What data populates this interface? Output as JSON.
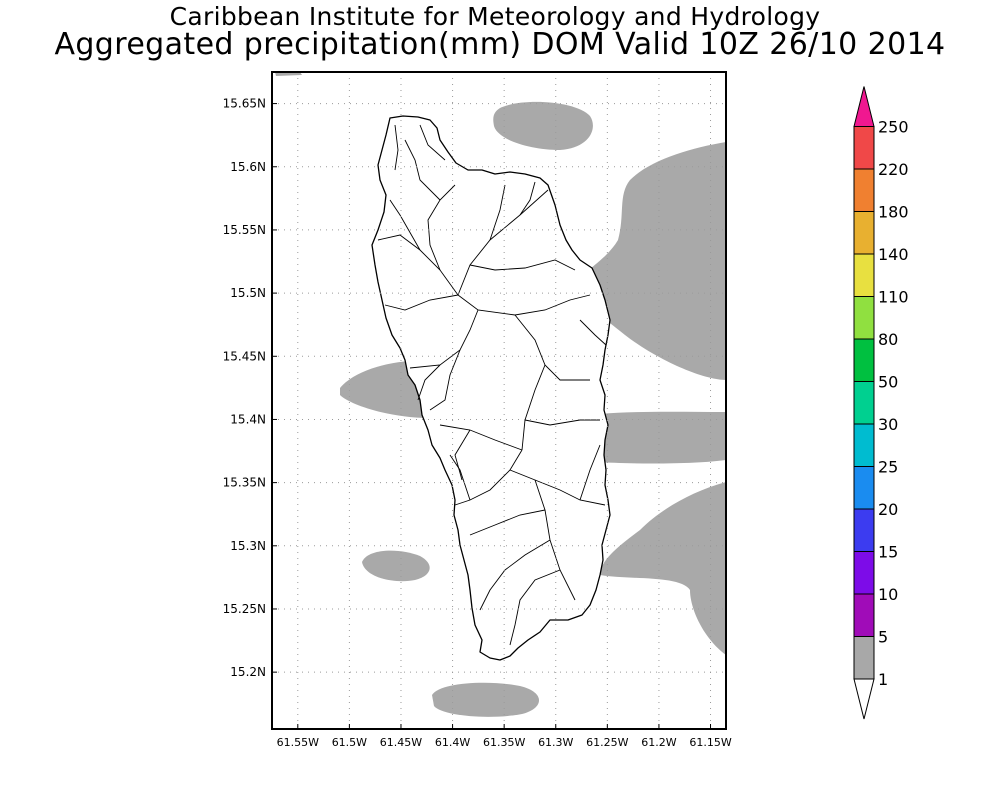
{
  "title": {
    "line1": "Caribbean Institute for Meteorology and Hydrology",
    "line2": "Aggregated precipitation(mm) DOM Valid 10Z 26/10 2014"
  },
  "map": {
    "region": "Dominica",
    "lat_range": [
      15.155,
      15.675
    ],
    "lon_range": [
      -61.575,
      -61.135
    ],
    "lat_ticks": [
      "15.2N",
      "15.25N",
      "15.3N",
      "15.35N",
      "15.4N",
      "15.45N",
      "15.5N",
      "15.55N",
      "15.6N",
      "15.65N"
    ],
    "lon_ticks": [
      "61.55W",
      "61.5W",
      "61.45W",
      "61.4W",
      "61.35W",
      "61.3W",
      "61.25W",
      "61.2W",
      "61.15W"
    ],
    "grid": "dotted",
    "precip_fill_color": "#a9a9a9",
    "land_outline_color": "#000000"
  },
  "colorbar": {
    "labels": [
      "1",
      "5",
      "10",
      "15",
      "20",
      "25",
      "30",
      "50",
      "80",
      "110",
      "140",
      "180",
      "220",
      "250"
    ],
    "colors": [
      "#a8a8a8",
      "#a00cb8",
      "#7d0ce8",
      "#3c3cf0",
      "#1a8cf0",
      "#00bcd0",
      "#00d090",
      "#00c040",
      "#90e040",
      "#e8e040",
      "#e8b030",
      "#f08030",
      "#f04848",
      "#f01890"
    ]
  }
}
